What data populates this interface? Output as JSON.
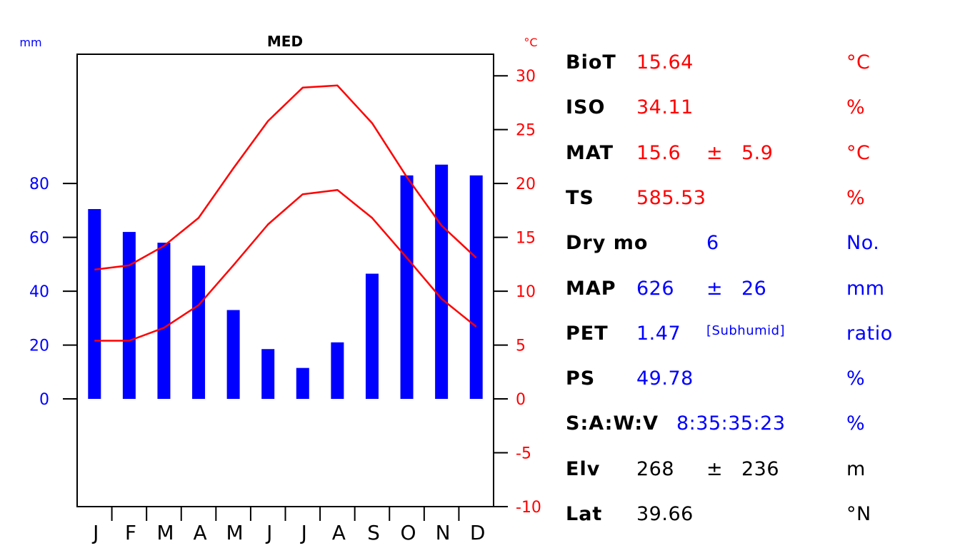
{
  "chart_data": {
    "type": "bar",
    "title": "MED",
    "left_axis_unit": "mm",
    "right_axis_unit": "°C",
    "categories": [
      "J",
      "F",
      "M",
      "A",
      "M",
      "J",
      "J",
      "A",
      "S",
      "O",
      "N",
      "D"
    ],
    "precipitation": {
      "values": [
        70.5,
        62,
        58,
        49.5,
        33,
        18.5,
        11.5,
        21,
        46.5,
        83,
        87,
        83
      ],
      "ticks": [
        0,
        20,
        40,
        60,
        80
      ],
      "color": "#0000ff"
    },
    "temp_max": {
      "values": [
        12.0,
        12.4,
        14.2,
        16.8,
        21.4,
        25.8,
        28.9,
        29.1,
        25.6,
        20.6,
        16.1,
        13.1
      ],
      "color": "#ff0000"
    },
    "temp_min": {
      "values": [
        5.4,
        5.4,
        6.6,
        8.7,
        12.4,
        16.2,
        19.0,
        19.4,
        16.8,
        13.1,
        9.3,
        6.7
      ],
      "color": "#ff0000"
    },
    "temperature_ticks": [
      -10,
      -5,
      0,
      5,
      10,
      15,
      20,
      25,
      30
    ],
    "temperature_range": [
      -10,
      32
    ],
    "precip_scale": "20 mm per 5 °C"
  },
  "stats": [
    {
      "label": "BioT",
      "value": "15.64",
      "pm": "",
      "err": "",
      "note": "",
      "unit": "°C",
      "color": "#ff0000"
    },
    {
      "label": "ISO",
      "value": "34.11",
      "pm": "",
      "err": "",
      "note": "",
      "unit": "%",
      "color": "#ff0000"
    },
    {
      "label": "MAT",
      "value": "15.6",
      "pm": "±",
      "err": "5.9",
      "note": "",
      "unit": "°C",
      "color": "#ff0000"
    },
    {
      "label": "TS",
      "value": "585.53",
      "pm": "",
      "err": "",
      "note": "",
      "unit": "%",
      "color": "#ff0000"
    },
    {
      "label": "Dry mo",
      "value": "",
      "pm": "6",
      "err": "",
      "note": "",
      "unit": "No.",
      "color": "#0000ff"
    },
    {
      "label": "MAP",
      "value": "626",
      "pm": "±",
      "err": "26",
      "note": "",
      "unit": "mm",
      "color": "#0000ff"
    },
    {
      "label": "PET",
      "value": "1.47",
      "pm": "",
      "err": "",
      "note": "[Subhumid]",
      "unit": "ratio",
      "color": "#0000ff"
    },
    {
      "label": "PS",
      "value": "49.78",
      "pm": "",
      "err": "",
      "note": "",
      "unit": "%",
      "color": "#0000ff"
    },
    {
      "label": "S:A:W:V",
      "value": "8:35:35:23",
      "pm": "",
      "err": "",
      "note": "",
      "unit": "%",
      "color": "#0000ff",
      "wide": true
    },
    {
      "label": "Elv",
      "value": "268",
      "pm": "±",
      "err": "236",
      "note": "",
      "unit": "m",
      "color": "#000000"
    },
    {
      "label": "Lat",
      "value": "39.66",
      "pm": "",
      "err": "",
      "note": "",
      "unit": "°N",
      "color": "#000000"
    }
  ]
}
